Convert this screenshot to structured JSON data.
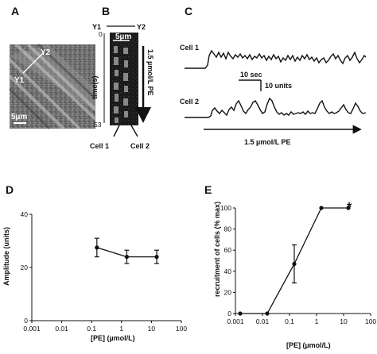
{
  "panels": {
    "A": {
      "letter": "A",
      "label_y2": "Y2",
      "label_y1": "Y1",
      "scale_label": "5µm"
    },
    "B": {
      "letter": "B",
      "y1": "Y1",
      "y2": "Y2",
      "scale_label": "5µm",
      "time_axis_label": "time(s)",
      "time_start": "0",
      "time_end": "53",
      "pe_label": "1.5 µmol/L PE",
      "cell1": "Cell 1",
      "cell2": "Cell 2"
    },
    "C": {
      "letter": "C",
      "cell1": "Cell 1",
      "cell2": "Cell 2",
      "scale_time": "10 sec",
      "scale_units": "10 units",
      "pe_label": "1.5 µmol/L PE"
    },
    "D": {
      "letter": "D"
    },
    "E": {
      "letter": "E",
      "star": "*"
    }
  },
  "chart_data": [
    {
      "type": "line",
      "panel": "D",
      "xlabel": "[PE] (µmol/L)",
      "ylabel": "Amplitude (units)",
      "x_scale": "log",
      "x_ticks": [
        "0.001",
        "0.01",
        "0.1",
        "1",
        "10",
        "100"
      ],
      "y_ticks": [
        "0",
        "20",
        "40"
      ],
      "ylim": [
        0,
        40
      ],
      "points": [
        {
          "x": 0.15,
          "y": 27.5,
          "err": 3.5
        },
        {
          "x": 1.5,
          "y": 24,
          "err": 2.5
        },
        {
          "x": 15,
          "y": 24,
          "err": 2.5
        }
      ]
    },
    {
      "type": "line",
      "panel": "E",
      "xlabel": "[PE] (µmol/L)",
      "ylabel": "recruitment of cells (% max)",
      "x_scale": "log",
      "x_ticks": [
        "0.001",
        "0.01",
        "0.1",
        "1",
        "10",
        "100"
      ],
      "y_ticks": [
        "0",
        "20",
        "40",
        "60",
        "80",
        "100"
      ],
      "ylim": [
        0,
        100
      ],
      "points": [
        {
          "x": 0.0015,
          "y": 0,
          "err": 0
        },
        {
          "x": 0.015,
          "y": 0,
          "err": 0
        },
        {
          "x": 0.15,
          "y": 47,
          "err": 18
        },
        {
          "x": 1.5,
          "y": 100,
          "err": 0
        },
        {
          "x": 15,
          "y": 100,
          "err": 0
        }
      ]
    }
  ]
}
